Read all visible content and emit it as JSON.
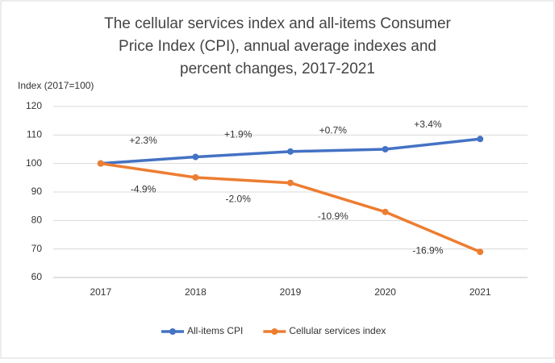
{
  "chart_data": {
    "type": "line",
    "title": "The cellular services index and all-items Consumer Price Index (CPI), annual average indexes and percent changes, 2017-2021",
    "y_label": "Index (2017=100)",
    "categories": [
      "2017",
      "2018",
      "2019",
      "2020",
      "2021"
    ],
    "series": [
      {
        "name": "All-items CPI",
        "color": "#4472c4",
        "values": [
          100,
          102.3,
          104.2,
          105.0,
          108.6
        ],
        "change_labels": [
          "+2.3%",
          "+1.9%",
          "+0.7%",
          "+3.4%"
        ]
      },
      {
        "name": "Cellular services index",
        "color": "#ed7d31",
        "values": [
          100,
          95.1,
          93.2,
          83.0,
          69.0
        ],
        "change_labels": [
          "-4.9%",
          "-2.0%",
          "-10.9%",
          "-16.9%"
        ]
      }
    ],
    "ylim": [
      60,
      120
    ],
    "yticks": [
      60,
      70,
      80,
      90,
      100,
      110,
      120
    ],
    "grid": true,
    "legend": "bottom"
  }
}
